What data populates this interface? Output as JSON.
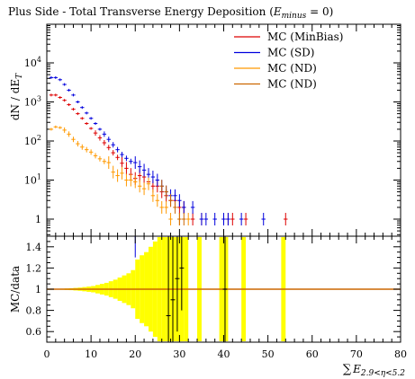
{
  "chart_data": [
    {
      "type": "scatter",
      "panel": "main",
      "title": "Plus Side - Total Transverse Energy Deposition (E_minus = 0)",
      "title_text": "Plus Side - Total Transverse Energy Deposition (",
      "title_sym": "E",
      "title_sub": "minus",
      "title_tail": " = 0)",
      "ylabel": "dN / dE",
      "ylabel_sub": "T",
      "yscale": "log",
      "ylim": [
        0.5,
        10000
      ],
      "xlim": [
        0,
        80
      ],
      "y_ticks": [
        {
          "v": 1,
          "label": "1"
        },
        {
          "v": 10,
          "label": "10",
          "exp": "1"
        },
        {
          "v": 100,
          "label": "10",
          "exp": "2"
        },
        {
          "v": 1000,
          "label": "10",
          "exp": "3"
        },
        {
          "v": 10000,
          "label": "10",
          "exp": "4"
        }
      ],
      "legend_position": "top-right",
      "series": [
        {
          "name": "MC (MinBias)",
          "color": "#dd0000",
          "points": [
            [
              1,
              1500
            ],
            [
              2,
              1500
            ],
            [
              3,
              1300
            ],
            [
              4,
              1100
            ],
            [
              5,
              850
            ],
            [
              6,
              650
            ],
            [
              7,
              500
            ],
            [
              8,
              380
            ],
            [
              9,
              280
            ],
            [
              10,
              210
            ],
            [
              11,
              160
            ],
            [
              12,
              120
            ],
            [
              13,
              90
            ],
            [
              14,
              68
            ],
            [
              15,
              50
            ],
            [
              16,
              38
            ],
            [
              17,
              27
            ],
            [
              18,
              20
            ],
            [
              19,
              14
            ],
            [
              20,
              11
            ],
            [
              21,
              13
            ],
            [
              22,
              12
            ],
            [
              23,
              9
            ],
            [
              24,
              7
            ],
            [
              25,
              7
            ],
            [
              26,
              5
            ],
            [
              27,
              4
            ],
            [
              28,
              3
            ],
            [
              29,
              3
            ],
            [
              30,
              2
            ],
            [
              31,
              2
            ],
            [
              33,
              1
            ],
            [
              35,
              1
            ],
            [
              40,
              1
            ],
            [
              41,
              1
            ],
            [
              42,
              1
            ],
            [
              45,
              1
            ],
            [
              54,
              1
            ]
          ]
        },
        {
          "name": "MC (SD)",
          "color": "#0000dd",
          "points": [
            [
              1,
              4200
            ],
            [
              2,
              4200
            ],
            [
              3,
              3700
            ],
            [
              4,
              2800
            ],
            [
              5,
              2000
            ],
            [
              6,
              1500
            ],
            [
              7,
              1000
            ],
            [
              8,
              720
            ],
            [
              9,
              520
            ],
            [
              10,
              380
            ],
            [
              11,
              280
            ],
            [
              12,
              200
            ],
            [
              13,
              150
            ],
            [
              14,
              110
            ],
            [
              15,
              80
            ],
            [
              16,
              60
            ],
            [
              17,
              45
            ],
            [
              18,
              36
            ],
            [
              19,
              30
            ],
            [
              20,
              28
            ],
            [
              21,
              22
            ],
            [
              22,
              18
            ],
            [
              23,
              14
            ],
            [
              24,
              12
            ],
            [
              25,
              10
            ],
            [
              26,
              7
            ],
            [
              27,
              5
            ],
            [
              28,
              4
            ],
            [
              29,
              4
            ],
            [
              30,
              3
            ],
            [
              31,
              2
            ],
            [
              33,
              2
            ],
            [
              35,
              1
            ],
            [
              36,
              1
            ],
            [
              38,
              1
            ],
            [
              40,
              1
            ],
            [
              41,
              1
            ],
            [
              44,
              1
            ],
            [
              49,
              1
            ]
          ]
        },
        {
          "name": "MC (ND)",
          "color": "#ff9900",
          "points": [
            [
              1,
              200
            ],
            [
              2,
              230
            ],
            [
              3,
              220
            ],
            [
              4,
              190
            ],
            [
              5,
              150
            ],
            [
              6,
              110
            ],
            [
              7,
              85
            ],
            [
              8,
              70
            ],
            [
              9,
              60
            ],
            [
              10,
              52
            ],
            [
              11,
              42
            ],
            [
              12,
              35
            ],
            [
              13,
              30
            ],
            [
              14,
              28
            ],
            [
              15,
              16
            ],
            [
              16,
              13
            ],
            [
              17,
              15
            ],
            [
              18,
              10
            ],
            [
              19,
              10
            ],
            [
              20,
              9
            ],
            [
              21,
              7
            ],
            [
              22,
              6
            ],
            [
              23,
              8
            ],
            [
              24,
              4
            ],
            [
              25,
              3
            ],
            [
              26,
              2
            ],
            [
              27,
              2
            ],
            [
              28,
              1
            ],
            [
              30,
              1
            ],
            [
              32,
              1
            ]
          ]
        },
        {
          "name": "MC (ND)",
          "color": "#cc6600",
          "points": [
            [
              26,
              7
            ],
            [
              27,
              5
            ],
            [
              28,
              3
            ],
            [
              29,
              2
            ],
            [
              30,
              1
            ],
            [
              31,
              1
            ]
          ]
        }
      ]
    },
    {
      "type": "bar",
      "panel": "ratio",
      "ylabel": "MC/data",
      "xlabel_sym": "E",
      "xlabel_sub": "2.9<η<5.2",
      "xlim": [
        0,
        80
      ],
      "ylim": [
        0.5,
        1.5
      ],
      "x_ticks": [
        0,
        10,
        20,
        30,
        40,
        50,
        60,
        70,
        80
      ],
      "x_tick_labels": [
        "0",
        "10",
        "20",
        "30",
        "40",
        "50",
        "60",
        "70",
        "80"
      ],
      "y_ticks": [
        0.6,
        0.8,
        1.0,
        1.2,
        1.4
      ],
      "y_tick_labels": [
        "0.6",
        "0.8",
        "1",
        "1.2",
        "1.4"
      ],
      "band_color": "#ffff00",
      "reference_line": 1.0,
      "band": [
        {
          "x0": 0,
          "x1": 1,
          "h": 0.002
        },
        {
          "x0": 1,
          "x1": 2,
          "h": 0.003
        },
        {
          "x0": 2,
          "x1": 3,
          "h": 0.004
        },
        {
          "x0": 3,
          "x1": 4,
          "h": 0.005
        },
        {
          "x0": 4,
          "x1": 5,
          "h": 0.007
        },
        {
          "x0": 5,
          "x1": 6,
          "h": 0.009
        },
        {
          "x0": 6,
          "x1": 7,
          "h": 0.012
        },
        {
          "x0": 7,
          "x1": 8,
          "h": 0.015
        },
        {
          "x0": 8,
          "x1": 9,
          "h": 0.02
        },
        {
          "x0": 9,
          "x1": 10,
          "h": 0.025
        },
        {
          "x0": 10,
          "x1": 11,
          "h": 0.03
        },
        {
          "x0": 11,
          "x1": 12,
          "h": 0.04
        },
        {
          "x0": 12,
          "x1": 13,
          "h": 0.05
        },
        {
          "x0": 13,
          "x1": 14,
          "h": 0.06
        },
        {
          "x0": 14,
          "x1": 15,
          "h": 0.075
        },
        {
          "x0": 15,
          "x1": 16,
          "h": 0.09
        },
        {
          "x0": 16,
          "x1": 17,
          "h": 0.11
        },
        {
          "x0": 17,
          "x1": 18,
          "h": 0.13
        },
        {
          "x0": 18,
          "x1": 19,
          "h": 0.15
        },
        {
          "x0": 19,
          "x1": 20,
          "h": 0.18
        },
        {
          "x0": 20,
          "x1": 21,
          "h": 0.28
        },
        {
          "x0": 21,
          "x1": 22,
          "h": 0.32
        },
        {
          "x0": 22,
          "x1": 23,
          "h": 0.35
        },
        {
          "x0": 23,
          "x1": 24,
          "h": 0.4
        },
        {
          "x0": 24,
          "x1": 25,
          "h": 0.45
        },
        {
          "x0": 25,
          "x1": 26,
          "h": 0.5
        },
        {
          "x0": 26,
          "x1": 27,
          "h": 0.55
        },
        {
          "x0": 27,
          "x1": 28,
          "h": 0.6
        },
        {
          "x0": 28,
          "x1": 29,
          "h": 0.6
        },
        {
          "x0": 29,
          "x1": 30,
          "h": 0.6
        },
        {
          "x0": 30,
          "x1": 31,
          "h": 0.6
        },
        {
          "x0": 31,
          "x1": 32,
          "h": 0.6
        },
        {
          "x0": 34,
          "x1": 35,
          "h": 0.6
        },
        {
          "x0": 39,
          "x1": 40,
          "h": 0.6
        },
        {
          "x0": 40,
          "x1": 41,
          "h": 0.6
        },
        {
          "x0": 44,
          "x1": 45,
          "h": 0.6
        },
        {
          "x0": 53,
          "x1": 54,
          "h": 0.6
        }
      ],
      "ratio_points": [
        {
          "x": 20,
          "y": 1.6,
          "lo": 1.3,
          "hi": 1.9,
          "color": "#0000dd"
        },
        {
          "x": 27.5,
          "y": 0.75,
          "lo": 0.45,
          "hi": 1.55,
          "color": "#000000"
        },
        {
          "x": 28.5,
          "y": 0.9,
          "lo": 0.45,
          "hi": 1.55,
          "color": "#000000"
        },
        {
          "x": 29.5,
          "y": 1.1,
          "lo": 0.6,
          "hi": 1.55,
          "color": "#000000"
        },
        {
          "x": 30.5,
          "y": 1.2,
          "lo": 0.8,
          "hi": 1.55,
          "color": "#000000"
        },
        {
          "x": 40.3,
          "y": 1.0,
          "lo": 0.45,
          "hi": 1.55,
          "color": "#000000"
        }
      ]
    }
  ]
}
